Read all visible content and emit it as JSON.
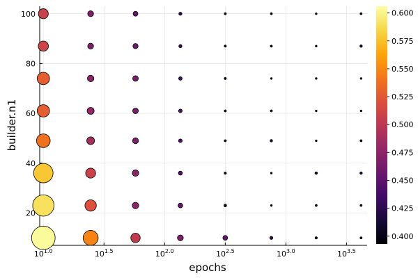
{
  "chart_data": {
    "type": "scatter",
    "xlabel": "epochs",
    "ylabel": "builder.n1",
    "x_scale": "log10",
    "xlim": [
      0.97,
      3.67
    ],
    "ylim": [
      7,
      103
    ],
    "grid": true,
    "x_ticks": [
      {
        "base": "10",
        "exp": "1.0",
        "value": 1.0
      },
      {
        "base": "10",
        "exp": "1.5",
        "value": 1.5
      },
      {
        "base": "10",
        "exp": "2.0",
        "value": 2.0
      },
      {
        "base": "10",
        "exp": "2.5",
        "value": 2.5
      },
      {
        "base": "10",
        "exp": "3.0",
        "value": 3.0
      },
      {
        "base": "10",
        "exp": "3.5",
        "value": 3.5
      }
    ],
    "y_ticks": [
      {
        "label": "20",
        "value": 20
      },
      {
        "label": "40",
        "value": 40
      },
      {
        "label": "60",
        "value": 60
      },
      {
        "label": "80",
        "value": 80
      },
      {
        "label": "100",
        "value": 100
      }
    ],
    "colorbar": {
      "min": 0.393,
      "max": 0.606,
      "colormap": "inferno",
      "ticks": [
        {
          "label": "0.400",
          "value": 0.4
        },
        {
          "label": "0.425",
          "value": 0.425
        },
        {
          "label": "0.450",
          "value": 0.45
        },
        {
          "label": "0.475",
          "value": 0.475
        },
        {
          "label": "0.500",
          "value": 0.5
        },
        {
          "label": "0.525",
          "value": 0.525
        },
        {
          "label": "0.550",
          "value": 0.55
        },
        {
          "label": "0.575",
          "value": 0.575
        },
        {
          "label": "0.600",
          "value": 0.6
        }
      ]
    },
    "x_log_values": [
      1.0,
      1.39,
      1.76,
      2.13,
      2.5,
      2.88,
      3.25,
      3.62
    ],
    "y_values": [
      10,
      23,
      36,
      49,
      61,
      74,
      87,
      100
    ],
    "color_matrix": [
      [
        0.604,
        0.548,
        0.503,
        0.468,
        0.455,
        0.43,
        0.415,
        0.41
      ],
      [
        0.59,
        0.52,
        0.475,
        0.455,
        0.425,
        0.4,
        0.41,
        0.41
      ],
      [
        0.578,
        0.508,
        0.475,
        0.445,
        0.415,
        0.4,
        0.42,
        0.42
      ],
      [
        0.538,
        0.488,
        0.468,
        0.44,
        0.412,
        0.42,
        0.4,
        0.41
      ],
      [
        0.528,
        0.48,
        0.465,
        0.44,
        0.412,
        0.41,
        0.4,
        0.4
      ],
      [
        0.528,
        0.475,
        0.465,
        0.438,
        0.412,
        0.4,
        0.4,
        0.4
      ],
      [
        0.51,
        0.468,
        0.46,
        0.432,
        0.412,
        0.41,
        0.4,
        0.42
      ],
      [
        0.508,
        0.468,
        0.455,
        0.432,
        0.412,
        0.41,
        0.4,
        0.41
      ]
    ]
  }
}
